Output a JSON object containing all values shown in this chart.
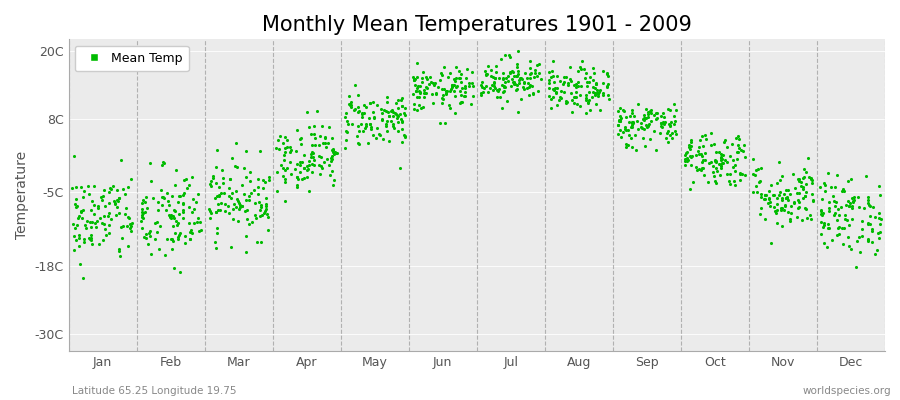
{
  "title": "Monthly Mean Temperatures 1901 - 2009",
  "ylabel": "Temperature",
  "xlabel_bottom_left": "Latitude 65.25 Longitude 19.75",
  "xlabel_bottom_right": "worldspecies.org",
  "ytick_labels": [
    "20C",
    "8C",
    "-5C",
    "-18C",
    "-30C"
  ],
  "ytick_values": [
    20,
    8,
    -5,
    -18,
    -30
  ],
  "ylim": [
    -33,
    22
  ],
  "months": [
    "Jan",
    "Feb",
    "Mar",
    "Apr",
    "May",
    "Jun",
    "Jul",
    "Aug",
    "Sep",
    "Oct",
    "Nov",
    "Dec"
  ],
  "month_centers": [
    1,
    2,
    3,
    4,
    5,
    6,
    7,
    8,
    9,
    10,
    11,
    12
  ],
  "dot_color": "#00bb00",
  "bg_color": "#ffffff",
  "plot_bg_color": "#ebebeb",
  "grid_color": "#999999",
  "legend_label": "Mean Temp",
  "title_fontsize": 15,
  "label_fontsize": 10,
  "tick_fontsize": 9,
  "month_means": [
    -9.5,
    -9.5,
    -6.0,
    1.5,
    8.0,
    13.0,
    15.0,
    13.0,
    7.0,
    1.0,
    -5.5,
    -9.0
  ],
  "month_stds": [
    4.0,
    4.5,
    3.5,
    3.0,
    2.5,
    2.0,
    2.0,
    2.0,
    2.0,
    2.5,
    3.0,
    3.5
  ],
  "n_years": 109
}
